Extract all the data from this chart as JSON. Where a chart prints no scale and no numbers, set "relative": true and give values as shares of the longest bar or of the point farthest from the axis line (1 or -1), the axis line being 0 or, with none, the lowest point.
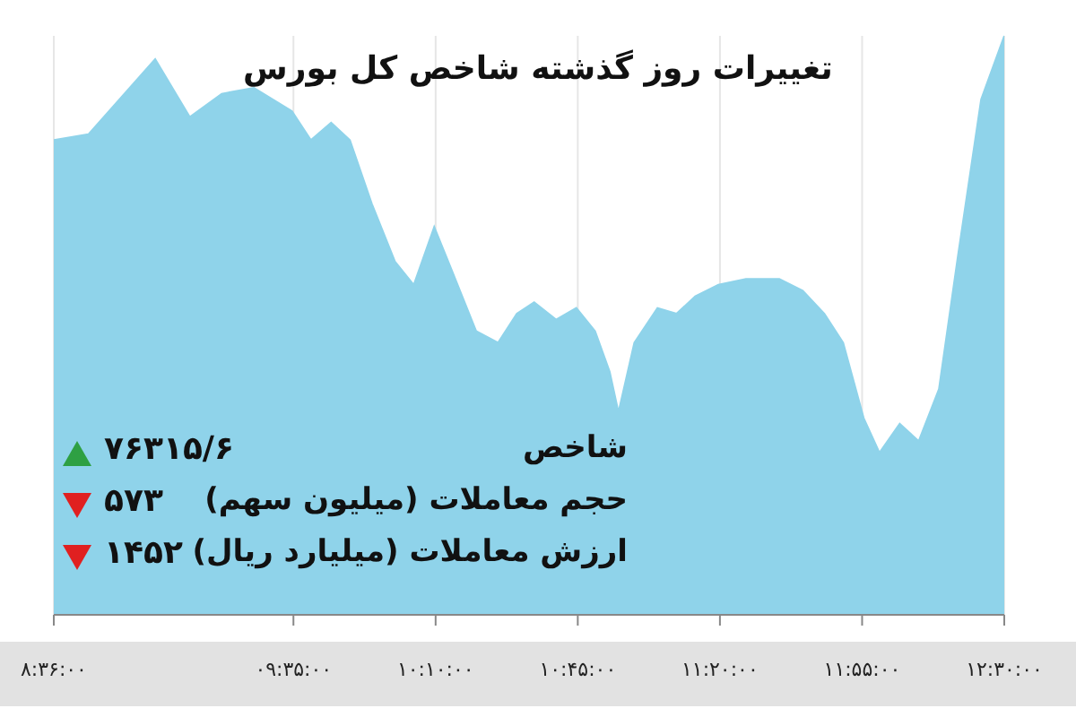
{
  "chart_data": {
    "type": "area",
    "title": "تغییرات روز گذشته شاخص کل بورس",
    "relative": true,
    "color": "#8fd3ea",
    "grid": "x",
    "x": [
      8.6,
      8.742,
      9.016,
      9.158,
      9.289,
      9.421,
      9.577,
      9.655,
      9.738,
      9.815,
      9.905,
      10.0,
      10.077,
      10.161,
      10.238,
      10.333,
      10.423,
      10.5,
      10.571,
      10.661,
      10.744,
      10.821,
      10.881,
      10.917,
      10.982,
      11.077,
      11.155,
      11.232,
      11.327,
      11.44,
      11.577,
      11.673,
      11.762,
      11.839,
      11.923,
      11.988,
      12.071,
      12.149,
      12.232,
      12.31,
      12.405,
      12.5
    ],
    "values": [
      0.82,
      0.83,
      0.96,
      0.86,
      0.9,
      0.91,
      0.87,
      0.82,
      0.85,
      0.82,
      0.71,
      0.61,
      0.57,
      0.67,
      0.59,
      0.49,
      0.47,
      0.52,
      0.54,
      0.51,
      0.53,
      0.49,
      0.42,
      0.35,
      0.47,
      0.53,
      0.52,
      0.55,
      0.57,
      0.58,
      0.58,
      0.56,
      0.52,
      0.47,
      0.34,
      0.28,
      0.33,
      0.3,
      0.39,
      0.62,
      0.89,
      1.0
    ],
    "xlim": [
      8.6,
      12.5
    ],
    "xticks": [
      {
        "value": 8.6,
        "label": "۸:۳۶:۰۰"
      },
      {
        "value": 9.5833,
        "label": "۰۹:۳۵:۰۰"
      },
      {
        "value": 10.1667,
        "label": "۱۰:۱۰:۰۰"
      },
      {
        "value": 10.75,
        "label": "۱۰:۴۵:۰۰"
      },
      {
        "value": 11.3333,
        "label": "۱۱:۲۰:۰۰"
      },
      {
        "value": 11.9167,
        "label": "۱۱:۵۵:۰۰"
      },
      {
        "value": 12.5,
        "label": "۱۲:۳۰:۰۰"
      }
    ],
    "annotations": [
      "شاخص",
      "۷۶۳۱۵/۶",
      "حجم معاملات (میلیون سهم)",
      "۵۷۳",
      "ارزش معاملات (میلیارد ریال)",
      "۱۴۵۲"
    ]
  }
}
